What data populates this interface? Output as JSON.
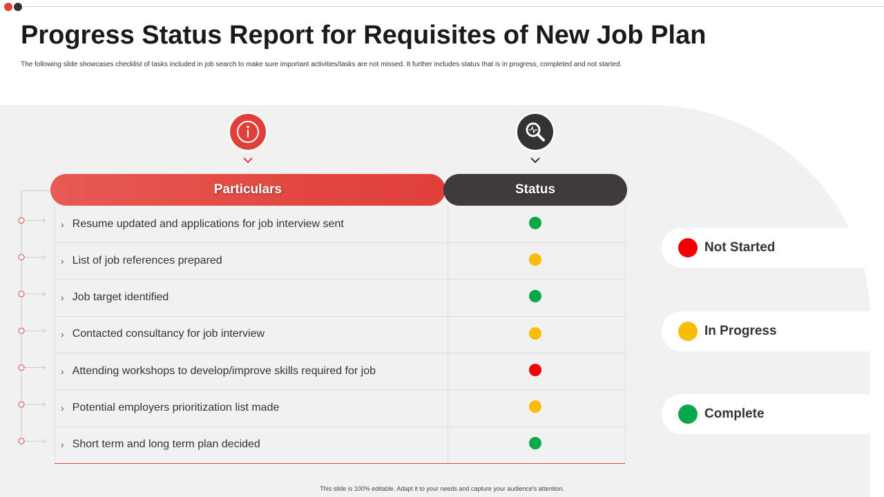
{
  "header": {
    "title": "Progress Status Report for Requisites of New Job Plan",
    "subtitle": "The following slide showcases checklist of tasks included in job search to make sure important activities/tasks are not missed. It further includes status that is in progress, completed and not started."
  },
  "table": {
    "columns": [
      "Particulars",
      "Status"
    ],
    "rows": [
      {
        "task": "Resume updated and applications for job interview sent",
        "status": "Complete"
      },
      {
        "task": "List of job references prepared",
        "status": "In Progress"
      },
      {
        "task": "Job target identified",
        "status": "Complete"
      },
      {
        "task": "Contacted consultancy  for job interview",
        "status": "In Progress"
      },
      {
        "task": "Attending workshops to develop/improve skills required for job",
        "status": "Not Started"
      },
      {
        "task": "Potential employers prioritization list made",
        "status": "In Progress"
      },
      {
        "task": "Short term and long term plan decided",
        "status": "Complete"
      }
    ]
  },
  "legend": [
    {
      "label": "Not Started",
      "color": "#f00000"
    },
    {
      "label": "In Progress",
      "color": "#fbbc05"
    },
    {
      "label": "Complete",
      "color": "#0aa84a"
    }
  ],
  "footer": "This slide is 100% editable. Adapt it to your needs and capture your audience's attention."
}
